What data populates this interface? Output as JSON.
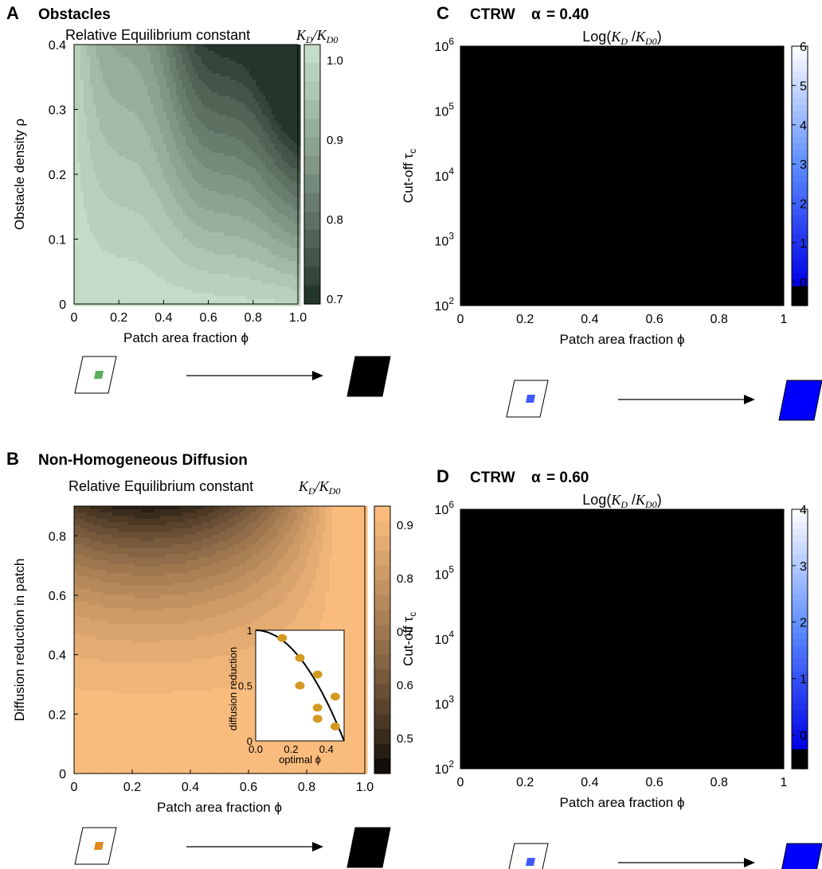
{
  "colors": {
    "green_low": "#1a2a20",
    "green_high": "#c9e2cc",
    "orange_low": "#000000",
    "orange_high": "#ffc080",
    "blue_dark": "#0000ff",
    "blue_light": "#ffffff",
    "patch_green": "#5cb05c",
    "patch_orange": "#e08a1e",
    "patch_blue": "#3f5bff",
    "inset_marker": "#d39a22"
  },
  "chart_data": [
    {
      "id": "A",
      "type": "heatmap",
      "panel_letter": "A",
      "panel_title": "Obstacles",
      "subtitle_prefix": "Relative Equilibrium constant ",
      "subtitle_math": "KD/KD0",
      "xlabel": "Patch area fraction ϕ",
      "ylabel": "Obstacle density ρ",
      "xlim": [
        0,
        1.0
      ],
      "ylim": [
        0,
        0.4
      ],
      "xticks": [
        "0",
        "0.2",
        "0.4",
        "0.6",
        "0.8",
        "1.0"
      ],
      "yticks": [
        "0",
        "0.1",
        "0.2",
        "0.3",
        "0.4"
      ],
      "colorbar": {
        "range": [
          0.7,
          1.0
        ],
        "ticks": [
          "1.0",
          "0.9",
          "0.8",
          "0.7"
        ]
      },
      "description": "KD/KD0 decreases from ~1.0 at low phi/low rho to ~0.7 at phi≈1, rho≈0.35"
    },
    {
      "id": "B",
      "type": "heatmap",
      "panel_letter": "B",
      "panel_title": "Non-Homogeneous Diffusion",
      "subtitle_prefix": "Relative Equilibrium constant ",
      "subtitle_math": "KD/KD0",
      "xlabel": "Patch area fraction ϕ",
      "ylabel": "Diffusion reduction in patch",
      "xlim": [
        0,
        1.0
      ],
      "ylim": [
        0,
        0.9
      ],
      "xticks": [
        "0",
        "0.2",
        "0.4",
        "0.6",
        "0.8",
        "1.0"
      ],
      "yticks": [
        "0",
        "0.2",
        "0.4",
        "0.6",
        "0.8"
      ],
      "colorbar": {
        "range": [
          0.43,
          0.94
        ],
        "ticks": [
          "0.9",
          "0.8",
          "0.7",
          "0.6",
          "0.5"
        ]
      },
      "inset": {
        "type": "scatter",
        "xlabel": "optimal ϕ",
        "ylabel": "diffusion reduction",
        "xlim": [
          0,
          0.5
        ],
        "ylim": [
          0,
          1
        ],
        "xticks": [
          "0.0",
          "0.2",
          "0.4"
        ],
        "yticks": [
          "0",
          "0.5",
          "1"
        ],
        "points": [
          [
            0.15,
            0.93
          ],
          [
            0.25,
            0.75
          ],
          [
            0.25,
            0.5
          ],
          [
            0.35,
            0.6
          ],
          [
            0.35,
            0.3
          ],
          [
            0.35,
            0.2
          ],
          [
            0.45,
            0.4
          ],
          [
            0.45,
            0.13
          ]
        ],
        "curve": "y = 1 - 4x^2"
      }
    },
    {
      "id": "C",
      "type": "heatmap",
      "panel_letter": "C",
      "panel_title": "CTRW",
      "alpha_symbol": "α",
      "alpha_value": "= 0.40",
      "subtitle_math": "Log(KD /KD0)",
      "xlabel": "Patch area fraction ϕ",
      "ylabel": "Cut-off τc",
      "xlim": [
        0,
        1
      ],
      "ylim_log10": [
        2,
        6
      ],
      "xticks": [
        "0",
        "0.2",
        "0.4",
        "0.6",
        "0.8",
        "1"
      ],
      "yticks": [
        "10^2",
        "10^3",
        "10^4",
        "10^5",
        "10^6"
      ],
      "colorbar": {
        "range": [
          -0.6,
          6
        ],
        "ticks": [
          "6",
          "5",
          "4",
          "3",
          "2",
          "1",
          "0"
        ]
      }
    },
    {
      "id": "D",
      "type": "heatmap",
      "panel_letter": "D",
      "panel_title": "CTRW",
      "alpha_symbol": "α",
      "alpha_value": "= 0.60",
      "subtitle_math": "Log(KD /KD0)",
      "xlabel": "Patch area fraction ϕ",
      "ylabel": "Cut-off τc",
      "xlim": [
        0,
        1
      ],
      "ylim_log10": [
        2,
        6
      ],
      "xticks": [
        "0",
        "0.2",
        "0.4",
        "0.6",
        "0.8",
        "1"
      ],
      "yticks": [
        "10^2",
        "10^3",
        "10^4",
        "10^5",
        "10^6"
      ],
      "colorbar": {
        "range": [
          -0.6,
          4
        ],
        "ticks": [
          "4",
          "3",
          "2",
          "1",
          "0"
        ]
      }
    }
  ]
}
